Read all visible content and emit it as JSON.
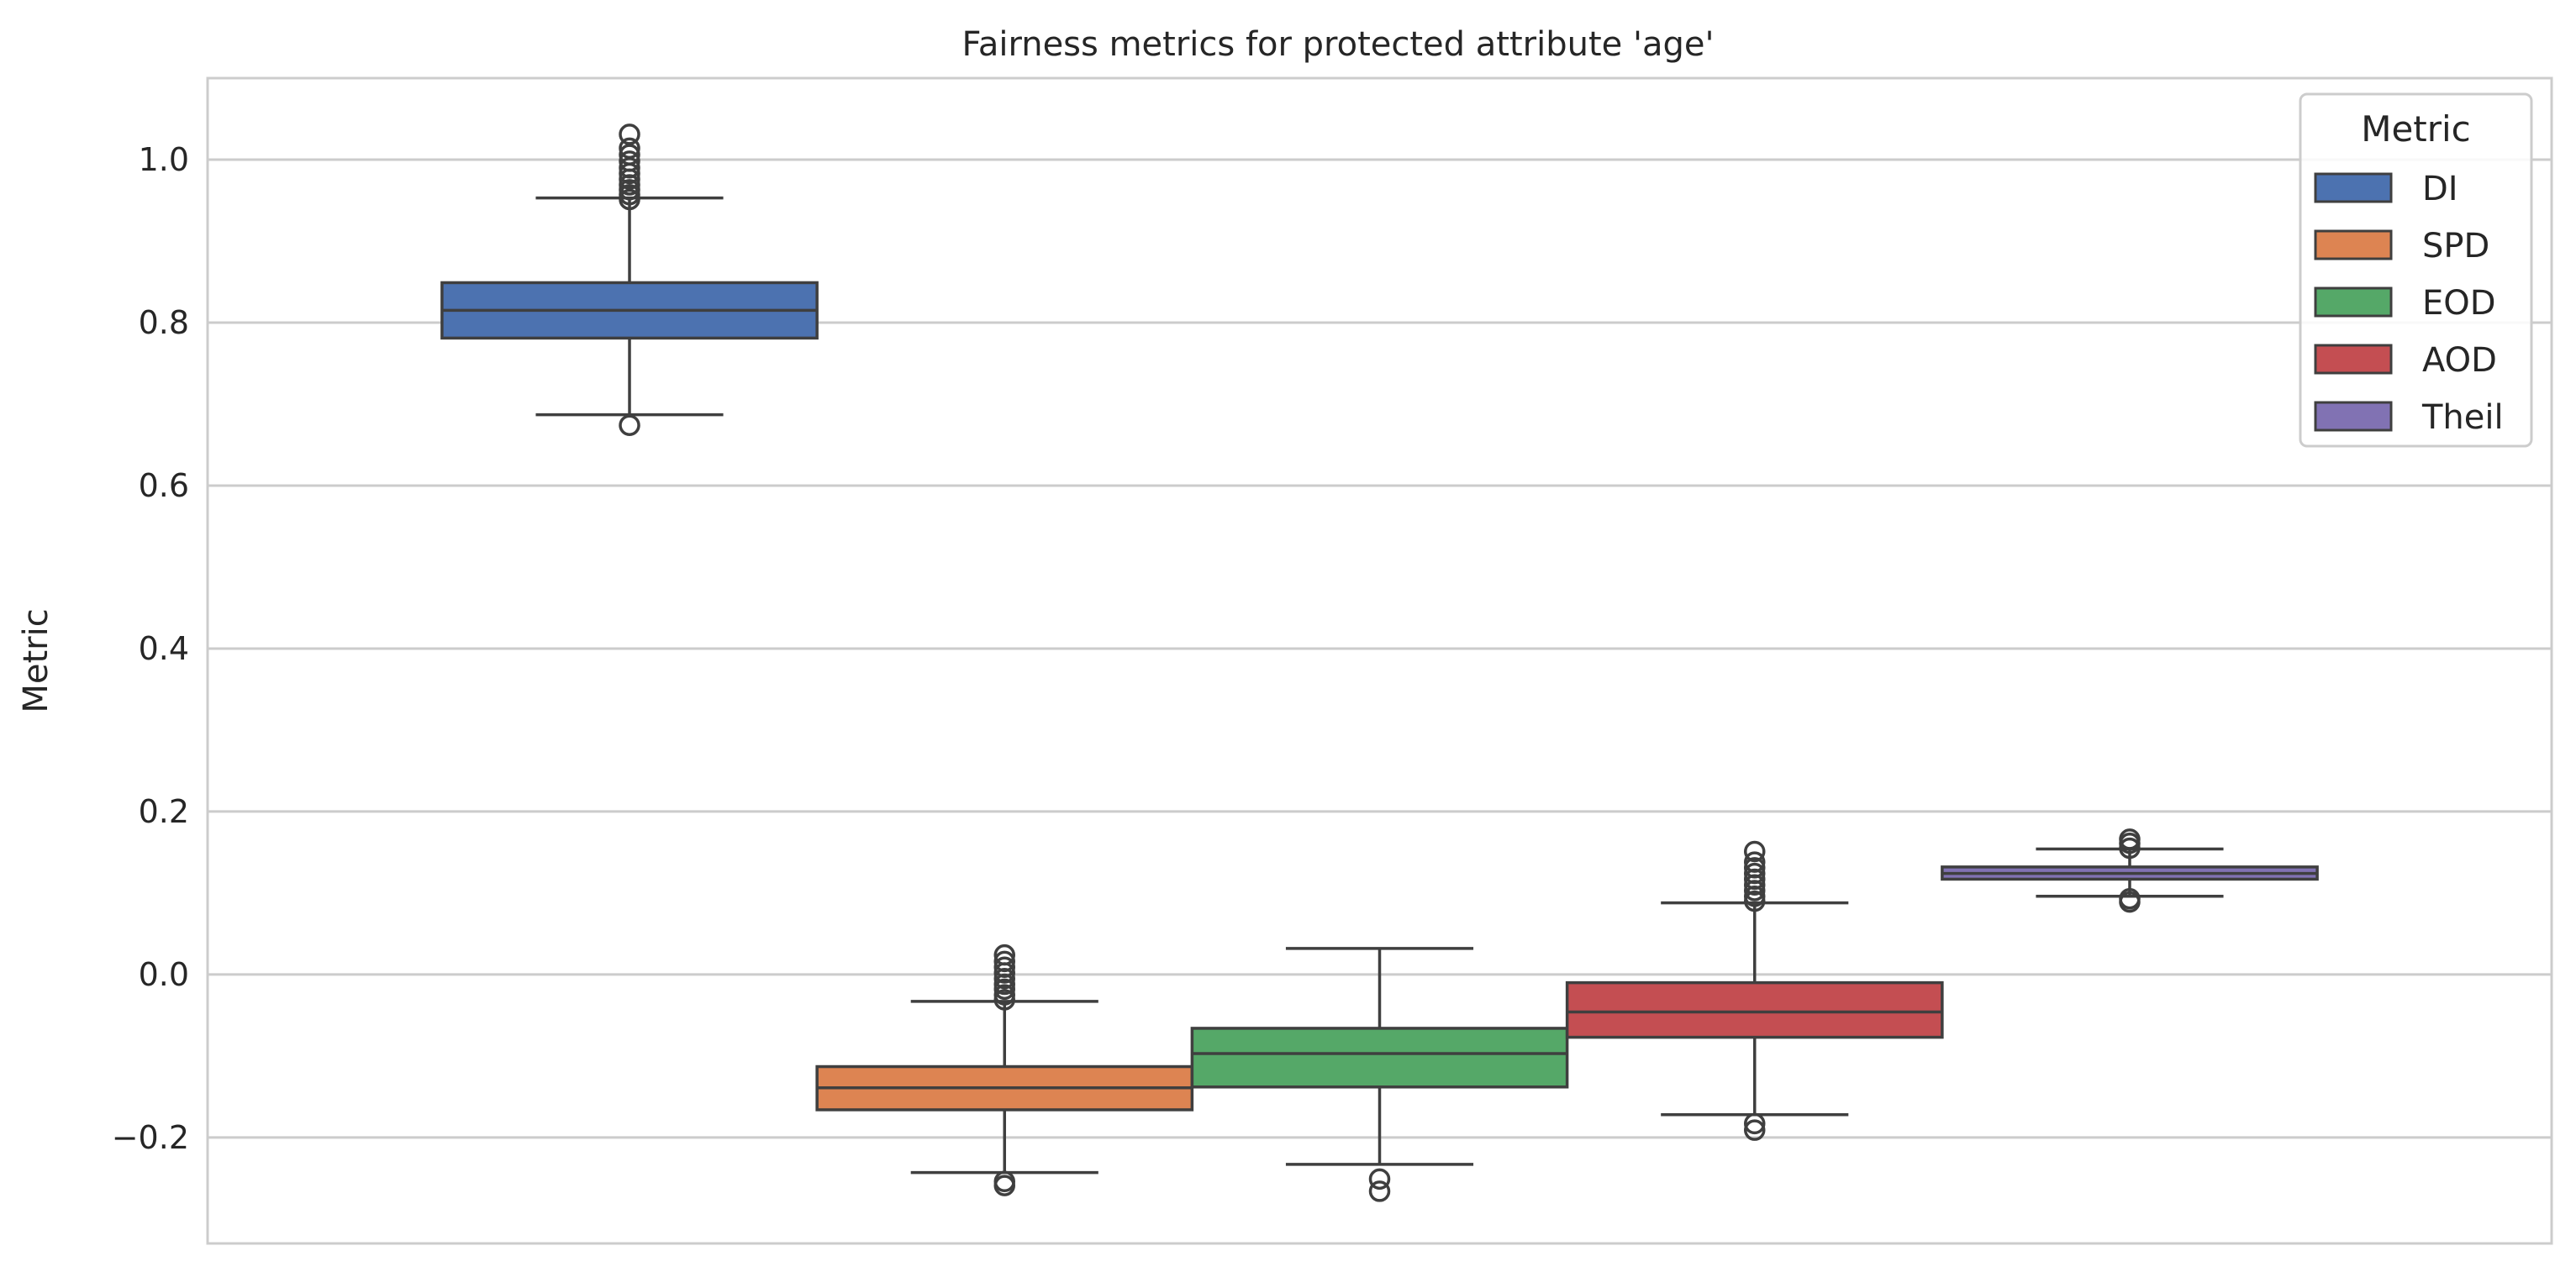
{
  "chart_data": {
    "type": "box",
    "title": "Fairness metrics for protected attribute 'age'",
    "xlabel": "",
    "ylabel": "Metric",
    "ylim": [
      -0.33,
      1.1
    ],
    "yticks": [
      -0.2,
      0.0,
      0.2,
      0.4,
      0.6,
      0.8,
      1.0
    ],
    "ytick_labels": [
      "−0.2",
      "0.0",
      "0.2",
      "0.4",
      "0.6",
      "0.8",
      "1.0"
    ],
    "grid": "horizontal",
    "legend": {
      "title": "Metric",
      "placement": "top-right",
      "entries": [
        "DI",
        "SPD",
        "EOD",
        "AOD",
        "Theil"
      ]
    },
    "series": [
      {
        "name": "DI",
        "color": "#4c72b0",
        "whisker_low": 0.687,
        "q1": 0.781,
        "median": 0.815,
        "q3": 0.849,
        "whisker_high": 0.953,
        "outliers": [
          0.674,
          0.951,
          0.957,
          0.963,
          0.969,
          0.976,
          0.983,
          0.99,
          0.998,
          1.006,
          1.014,
          1.031
        ]
      },
      {
        "name": "SPD",
        "color": "#dd8452",
        "whisker_low": -0.243,
        "q1": -0.166,
        "median": -0.139,
        "q3": -0.113,
        "whisker_high": -0.033,
        "outliers": [
          -0.259,
          -0.254,
          -0.031,
          -0.025,
          -0.018,
          -0.012,
          -0.005,
          0.002,
          0.009,
          0.016,
          0.024
        ]
      },
      {
        "name": "EOD",
        "color": "#55a868",
        "whisker_low": -0.233,
        "q1": -0.138,
        "median": -0.097,
        "q3": -0.066,
        "whisker_high": 0.032,
        "outliers": [
          -0.266,
          -0.251
        ]
      },
      {
        "name": "AOD",
        "color": "#c44e52",
        "whisker_low": -0.172,
        "q1": -0.077,
        "median": -0.046,
        "q3": -0.01,
        "whisker_high": 0.088,
        "outliers": [
          -0.191,
          -0.183,
          0.09,
          0.096,
          0.103,
          0.11,
          0.117,
          0.124,
          0.131,
          0.138,
          0.151
        ]
      },
      {
        "name": "Theil",
        "color": "#8172b3",
        "whisker_low": 0.096,
        "q1": 0.117,
        "median": 0.124,
        "q3": 0.132,
        "whisker_high": 0.154,
        "outliers": [
          0.089,
          0.093,
          0.155,
          0.161,
          0.166
        ]
      }
    ]
  }
}
